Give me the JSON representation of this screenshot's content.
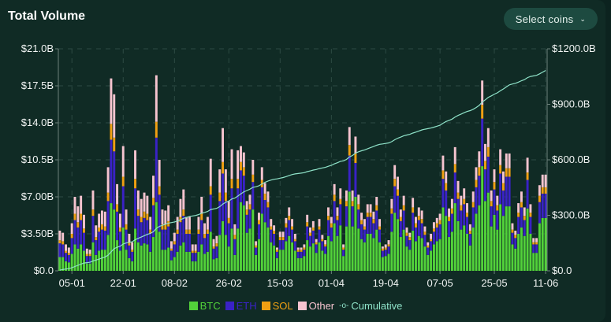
{
  "header": {
    "title": "Total Volume",
    "select_label": "Select coins",
    "select_icon": "chevron-down-icon"
  },
  "colors": {
    "BTC": "#52d23a",
    "ETH": "#3a22c6",
    "SOL": "#f0a012",
    "Other": "#f6c4cf",
    "Cumulative": "#8fe3c9",
    "background": "#102b25"
  },
  "chart_data": {
    "type": "bar",
    "stacked": true,
    "title": "Total Volume",
    "y_left": {
      "min": 0,
      "max": 21.0,
      "unit": "B USD",
      "ticks": [
        {
          "v": 0,
          "label": "$0.0"
        },
        {
          "v": 3.5,
          "label": "$3.50B"
        },
        {
          "v": 7,
          "label": "$7.00B"
        },
        {
          "v": 10.5,
          "label": "$10.5B"
        },
        {
          "v": 14,
          "label": "$14.0B"
        },
        {
          "v": 17.5,
          "label": "$17.5B"
        },
        {
          "v": 21,
          "label": "$21.0B"
        }
      ]
    },
    "y_right": {
      "min": 0,
      "max": 1200,
      "unit": "B USD",
      "ticks": [
        {
          "v": 0,
          "label": "$0.0"
        },
        {
          "v": 300,
          "label": "$300.0B"
        },
        {
          "v": 600,
          "label": "$600.0B"
        },
        {
          "v": 900,
          "label": "$900.0B"
        },
        {
          "v": 1200,
          "label": "$1200.0B"
        }
      ]
    },
    "x_ticks": [
      {
        "i": 4,
        "label": "05-01"
      },
      {
        "i": 21,
        "label": "22-01"
      },
      {
        "i": 38,
        "label": "08-02"
      },
      {
        "i": 56,
        "label": "26-02"
      },
      {
        "i": 73,
        "label": "15-03"
      },
      {
        "i": 90,
        "label": "01-04"
      },
      {
        "i": 108,
        "label": "19-04"
      },
      {
        "i": 126,
        "label": "07-05"
      },
      {
        "i": 144,
        "label": "25-05"
      },
      {
        "i": 161,
        "label": "11-06"
      }
    ],
    "grid": true,
    "legend_position": "bottom-center",
    "legend": [
      "BTC",
      "ETH",
      "SOL",
      "Other",
      "Cumulative"
    ],
    "cumulative_series": "Cumulative",
    "series": [
      {
        "name": "BTC",
        "values": [
          1.3,
          1.3,
          0.9,
          0.8,
          1.6,
          2.5,
          2.1,
          2.5,
          1.9,
          0.7,
          0.7,
          2.7,
          1.5,
          1.9,
          2.0,
          2.0,
          3.4,
          6.4,
          5.8,
          2.9,
          1.9,
          4.1,
          2.0,
          1.2,
          0.9,
          4.0,
          2.7,
          2.4,
          2.6,
          2.5,
          1.8,
          3.2,
          6.5,
          3.7,
          2.0,
          2.0,
          2.2,
          1.0,
          1.3,
          1.8,
          2.4,
          2.7,
          1.8,
          1.8,
          0.9,
          0.9,
          1.8,
          2.5,
          1.6,
          1.8,
          3.7,
          1.1,
          1.2,
          3.4,
          4.7,
          3.4,
          2.3,
          4.0,
          1.5,
          4.0,
          6.5,
          6.2,
          3.6,
          4.0,
          5.8,
          1.5,
          3.0,
          5.4,
          4.6,
          4.1,
          2.7,
          2.4,
          1.2,
          2.0,
          2.0,
          2.8,
          3.3,
          2.7,
          1.9,
          1.2,
          1.2,
          1.4,
          2.9,
          2.3,
          2.6,
          1.7,
          2.7,
          1.9,
          1.6,
          3.3,
          2.8,
          4.5,
          3.3,
          4.3,
          1.4,
          4.2,
          7.5,
          4.2,
          7.0,
          4.0,
          3.0,
          2.7,
          3.5,
          3.5,
          3.1,
          3.9,
          2.7,
          1.3,
          1.4,
          1.6,
          3.7,
          5.5,
          4.9,
          3.2,
          3.9,
          2.3,
          2.0,
          3.8,
          2.8,
          3.3,
          3.1,
          2.3,
          1.5,
          1.9,
          2.5,
          2.8,
          3.0,
          6.0,
          5.2,
          3.2,
          3.7,
          6.4,
          4.7,
          3.9,
          4.3,
          3.5,
          2.4,
          4.1,
          5.4,
          6.2,
          9.9,
          6.6,
          7.4,
          4.2,
          5.3,
          3.9,
          6.3,
          5.2,
          6.1,
          6.1,
          2.5,
          2.1,
          3.5,
          4.1,
          3.3,
          5.9,
          3.5,
          1.7,
          1.7,
          4.5,
          5.0,
          5.0
        ]
      },
      {
        "name": "ETH",
        "values": [
          1.3,
          1.2,
          0.8,
          0.7,
          1.5,
          2.3,
          2.0,
          2.3,
          1.7,
          0.7,
          0.7,
          2.5,
          1.4,
          1.8,
          1.9,
          1.8,
          3.2,
          6.0,
          5.5,
          2.7,
          1.8,
          3.9,
          1.9,
          1.2,
          0.9,
          3.8,
          2.5,
          2.2,
          2.4,
          2.3,
          1.7,
          3.0,
          6.1,
          3.5,
          1.9,
          1.9,
          2.0,
          0.9,
          1.2,
          1.7,
          2.2,
          2.5,
          1.7,
          1.7,
          0.8,
          0.8,
          1.7,
          2.3,
          1.5,
          1.7,
          3.5,
          1.0,
          1.1,
          3.2,
          4.5,
          3.2,
          2.2,
          3.8,
          1.5,
          3.8,
          3.0,
          2.8,
          1.7,
          1.8,
          2.6,
          0.7,
          1.4,
          2.5,
          2.1,
          1.9,
          1.2,
          1.1,
          0.6,
          0.9,
          0.9,
          1.3,
          1.5,
          1.2,
          0.9,
          0.6,
          0.6,
          0.6,
          1.3,
          1.0,
          1.2,
          0.8,
          1.2,
          0.9,
          0.7,
          1.5,
          1.3,
          2.1,
          1.5,
          2.0,
          0.6,
          1.9,
          3.4,
          1.9,
          3.2,
          1.8,
          1.4,
          1.2,
          1.6,
          1.6,
          1.4,
          1.8,
          1.2,
          0.6,
          0.6,
          0.7,
          1.7,
          2.5,
          2.2,
          1.5,
          1.8,
          1.0,
          0.9,
          1.7,
          1.3,
          1.5,
          1.4,
          1.1,
          0.7,
          0.9,
          1.2,
          1.3,
          1.4,
          2.7,
          2.4,
          1.5,
          1.7,
          2.9,
          2.1,
          1.8,
          2.0,
          1.6,
          1.1,
          1.9,
          2.5,
          2.8,
          4.5,
          3.0,
          3.4,
          1.9,
          2.4,
          1.8,
          2.9,
          2.4,
          2.8,
          2.8,
          1.1,
          1.0,
          1.6,
          1.9,
          1.5,
          2.7,
          1.6,
          0.8,
          0.8,
          2.0,
          2.3,
          2.3
        ]
      },
      {
        "name": "SOL",
        "values": [
          0.3,
          0.3,
          0.2,
          0.2,
          0.4,
          0.6,
          0.5,
          0.6,
          0.4,
          0.2,
          0.2,
          0.6,
          0.3,
          0.4,
          0.5,
          0.4,
          0.8,
          1.5,
          1.3,
          0.7,
          0.4,
          0.9,
          0.5,
          0.3,
          0.2,
          0.9,
          0.6,
          0.5,
          0.6,
          0.6,
          0.4,
          0.7,
          1.5,
          0.8,
          0.5,
          0.5,
          0.5,
          0.2,
          0.3,
          0.4,
          0.5,
          0.6,
          0.4,
          0.4,
          0.2,
          0.2,
          0.4,
          0.6,
          0.4,
          0.4,
          0.8,
          0.2,
          0.3,
          0.8,
          1.1,
          0.8,
          0.5,
          0.9,
          0.4,
          0.9,
          0.8,
          0.8,
          0.5,
          0.5,
          0.7,
          0.2,
          0.4,
          0.7,
          0.6,
          0.5,
          0.3,
          0.3,
          0.2,
          0.3,
          0.3,
          0.4,
          0.4,
          0.3,
          0.2,
          0.2,
          0.2,
          0.2,
          0.4,
          0.3,
          0.3,
          0.2,
          0.3,
          0.2,
          0.2,
          0.4,
          0.4,
          0.6,
          0.4,
          0.5,
          0.2,
          0.5,
          1.0,
          0.5,
          0.9,
          0.5,
          0.4,
          0.3,
          0.4,
          0.4,
          0.4,
          0.5,
          0.3,
          0.2,
          0.2,
          0.2,
          0.5,
          0.7,
          0.6,
          0.4,
          0.5,
          0.3,
          0.3,
          0.5,
          0.4,
          0.4,
          0.4,
          0.3,
          0.2,
          0.2,
          0.3,
          0.4,
          0.4,
          0.8,
          0.7,
          0.4,
          0.5,
          0.8,
          0.6,
          0.5,
          0.5,
          0.4,
          0.3,
          0.5,
          0.7,
          0.8,
          1.3,
          0.8,
          0.9,
          0.5,
          0.7,
          0.5,
          0.8,
          0.7,
          0.8,
          0.8,
          0.3,
          0.3,
          0.4,
          0.5,
          0.4,
          0.7,
          0.4,
          0.2,
          0.2,
          0.6,
          0.6,
          0.6
        ]
      },
      {
        "name": "Other",
        "values": [
          0.9,
          0.8,
          0.6,
          0.5,
          1.0,
          1.6,
          1.5,
          1.7,
          1.3,
          0.5,
          0.4,
          1.8,
          1.1,
          1.3,
          1.3,
          1.4,
          2.4,
          4.3,
          4.1,
          1.9,
          1.3,
          2.9,
          1.4,
          0.8,
          0.7,
          2.7,
          1.8,
          1.7,
          1.8,
          1.7,
          1.2,
          2.1,
          4.4,
          2.5,
          1.4,
          1.3,
          1.5,
          0.7,
          0.8,
          1.2,
          1.7,
          1.9,
          1.2,
          1.2,
          0.6,
          0.6,
          1.2,
          1.6,
          1.0,
          1.2,
          2.6,
          0.7,
          0.7,
          2.2,
          3.2,
          2.2,
          1.6,
          2.8,
          1.0,
          2.7,
          1.5,
          1.4,
          0.8,
          0.9,
          1.4,
          0.4,
          0.7,
          1.2,
          1.0,
          1.0,
          0.7,
          0.5,
          0.2,
          0.5,
          0.5,
          0.5,
          0.8,
          0.7,
          0.5,
          0.2,
          0.2,
          0.3,
          0.7,
          0.5,
          0.6,
          0.3,
          0.7,
          0.4,
          0.4,
          0.8,
          0.6,
          1.0,
          0.8,
          1.0,
          0.3,
          1.0,
          1.7,
          1.0,
          1.6,
          0.9,
          0.7,
          0.7,
          0.8,
          0.8,
          0.7,
          0.8,
          0.7,
          0.2,
          0.3,
          0.4,
          0.9,
          1.3,
          1.2,
          0.7,
          0.9,
          0.5,
          0.4,
          0.9,
          0.6,
          0.8,
          0.8,
          0.5,
          0.3,
          0.5,
          0.6,
          0.5,
          0.6,
          1.4,
          1.1,
          0.8,
          0.9,
          1.6,
          1.1,
          0.9,
          1.0,
          0.9,
          0.6,
          1.0,
          1.2,
          1.5,
          2.3,
          1.6,
          1.8,
          1.0,
          1.2,
          0.9,
          1.5,
          1.1,
          1.4,
          1.4,
          0.6,
          0.4,
          0.9,
          1.0,
          0.8,
          1.4,
          0.8,
          0.4,
          0.4,
          1.0,
          1.2,
          1.2
        ]
      }
    ]
  }
}
